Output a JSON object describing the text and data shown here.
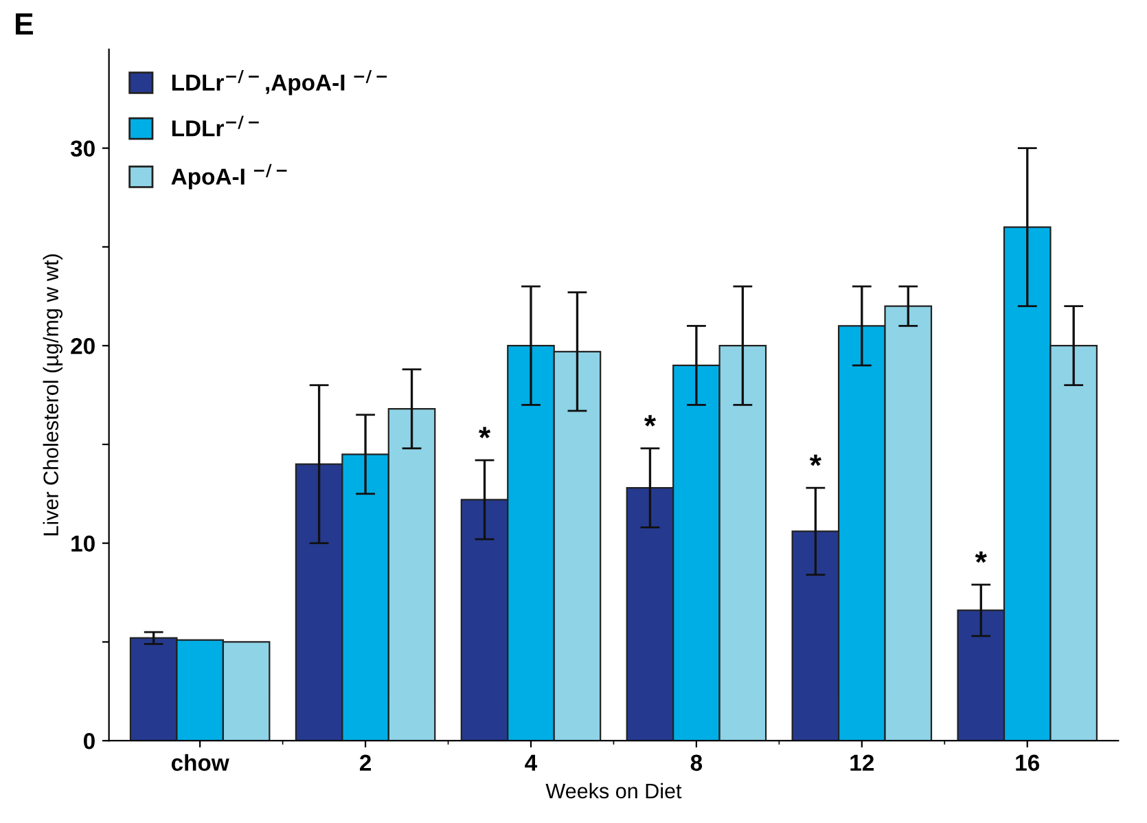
{
  "chart_data": {
    "type": "bar",
    "xlabel": "Weeks on Diet",
    "ylabel": "Liver Cholesterol (µg/mg w wt)",
    "categories": [
      "chow",
      "2",
      "4",
      "8",
      "12",
      "16"
    ],
    "series": [
      {
        "name": "LDLr$^{−/−}$,ApoA-I $^{−/−}$",
        "color": "#253a8e",
        "values": [
          5.2,
          14,
          12.2,
          12.8,
          10.6,
          6.6
        ],
        "errors": [
          0.3,
          4,
          2,
          2,
          2.2,
          1.3
        ],
        "value_labels": [
          null,
          null,
          "*",
          "*",
          "*",
          "*"
        ]
      },
      {
        "name": "LDLr$^{−/−}$",
        "color": "#00aee6",
        "values": [
          5.1,
          14.5,
          20,
          19,
          21,
          26
        ],
        "errors": [
          null,
          2,
          3,
          2,
          2,
          4
        ]
      },
      {
        "name": "ApoA-I $^{−/−}$",
        "color": "#8ed3e6",
        "values": [
          5.0,
          16.8,
          19.7,
          20,
          22,
          20
        ],
        "errors": [
          null,
          2,
          3,
          3,
          1,
          2
        ]
      }
    ],
    "ylim": [
      0,
      35
    ],
    "yticks": [
      0,
      {
        "value": 5,
        "label": null
      },
      10,
      {
        "value": 15,
        "label": null
      },
      20,
      {
        "value": 25,
        "label": null
      },
      30
    ],
    "annotations": [
      "E"
    ],
    "legend": "top left",
    "grid": false
  }
}
